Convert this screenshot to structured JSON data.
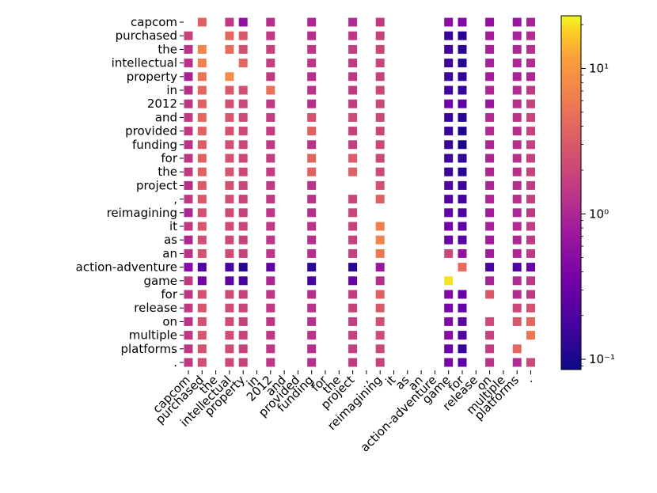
{
  "chart_data": {
    "type": "heatmap",
    "title": "",
    "xlabel": "",
    "ylabel": "",
    "tokens": [
      "capcom",
      "purchased",
      "the",
      "intellectual",
      "property",
      "in",
      "2012",
      "and",
      "provided",
      "funding",
      "for",
      "the",
      "project",
      ",",
      "reimagining",
      "it",
      "as",
      "an",
      "action-adventure",
      "game",
      "for",
      "release",
      "on",
      "multiple",
      "platforms",
      "."
    ],
    "colorbar": {
      "scale": "log",
      "colormap": "plasma",
      "range": [
        0.085,
        23
      ],
      "tick_labels": [
        "10⁻¹",
        "10⁰",
        "10¹"
      ],
      "tick_values": [
        0.1,
        1,
        10
      ]
    },
    "cells": [
      [
        0,
        1,
        3.5
      ],
      [
        0,
        3,
        1.5
      ],
      [
        0,
        4,
        0.6
      ],
      [
        0,
        6,
        1.2
      ],
      [
        0,
        9,
        1.0
      ],
      [
        0,
        12,
        1.1
      ],
      [
        0,
        14,
        1.5
      ],
      [
        0,
        19,
        0.55
      ],
      [
        0,
        20,
        0.45
      ],
      [
        0,
        22,
        0.6
      ],
      [
        0,
        24,
        0.7
      ],
      [
        0,
        25,
        0.9
      ],
      [
        1,
        0,
        1.8
      ],
      [
        1,
        3,
        4.0
      ],
      [
        1,
        4,
        3.0
      ],
      [
        1,
        6,
        1.5
      ],
      [
        1,
        9,
        1.2
      ],
      [
        1,
        12,
        1.4
      ],
      [
        1,
        14,
        1.8
      ],
      [
        1,
        19,
        0.15
      ],
      [
        1,
        20,
        0.12
      ],
      [
        1,
        22,
        0.8
      ],
      [
        1,
        24,
        0.9
      ],
      [
        1,
        25,
        1.1
      ],
      [
        2,
        0,
        1.3
      ],
      [
        2,
        1,
        7.0
      ],
      [
        2,
        3,
        4.5
      ],
      [
        2,
        4,
        2.5
      ],
      [
        2,
        6,
        1.8
      ],
      [
        2,
        9,
        1.4
      ],
      [
        2,
        12,
        1.6
      ],
      [
        2,
        14,
        2.0
      ],
      [
        2,
        19,
        0.17
      ],
      [
        2,
        20,
        0.13
      ],
      [
        2,
        22,
        0.9
      ],
      [
        2,
        24,
        1.0
      ],
      [
        2,
        25,
        1.2
      ],
      [
        3,
        0,
        1.3
      ],
      [
        3,
        1,
        6.5
      ],
      [
        3,
        4,
        4.0
      ],
      [
        3,
        6,
        1.7
      ],
      [
        3,
        9,
        1.4
      ],
      [
        3,
        12,
        1.5
      ],
      [
        3,
        14,
        1.9
      ],
      [
        3,
        19,
        0.16
      ],
      [
        3,
        20,
        0.12
      ],
      [
        3,
        22,
        0.9
      ],
      [
        3,
        24,
        1.0
      ],
      [
        3,
        25,
        1.1
      ],
      [
        4,
        0,
        0.9
      ],
      [
        4,
        1,
        5.0
      ],
      [
        4,
        3,
        8.0
      ],
      [
        4,
        6,
        1.5
      ],
      [
        4,
        9,
        1.2
      ],
      [
        4,
        12,
        1.4
      ],
      [
        4,
        14,
        1.8
      ],
      [
        4,
        19,
        0.15
      ],
      [
        4,
        20,
        0.13
      ],
      [
        4,
        22,
        0.8
      ],
      [
        4,
        24,
        0.9
      ],
      [
        4,
        25,
        1.0
      ],
      [
        5,
        0,
        1.2
      ],
      [
        5,
        1,
        4.0
      ],
      [
        5,
        3,
        3.0
      ],
      [
        5,
        4,
        2.5
      ],
      [
        5,
        6,
        5.0
      ],
      [
        5,
        9,
        1.3
      ],
      [
        5,
        12,
        1.5
      ],
      [
        5,
        14,
        2.0
      ],
      [
        5,
        19,
        0.17
      ],
      [
        5,
        20,
        0.14
      ],
      [
        5,
        22,
        1.0
      ],
      [
        5,
        24,
        1.1
      ],
      [
        5,
        25,
        1.5
      ],
      [
        6,
        0,
        1.4
      ],
      [
        6,
        1,
        3.5
      ],
      [
        6,
        3,
        2.5
      ],
      [
        6,
        4,
        2.0
      ],
      [
        6,
        6,
        1.5
      ],
      [
        6,
        9,
        1.2
      ],
      [
        6,
        12,
        1.6
      ],
      [
        6,
        14,
        2.0
      ],
      [
        6,
        19,
        0.35
      ],
      [
        6,
        20,
        0.25
      ],
      [
        6,
        22,
        0.7
      ],
      [
        6,
        24,
        1.2
      ],
      [
        6,
        25,
        1.8
      ],
      [
        7,
        0,
        1.5
      ],
      [
        7,
        1,
        4.0
      ],
      [
        7,
        3,
        2.8
      ],
      [
        7,
        4,
        2.2
      ],
      [
        7,
        6,
        1.6
      ],
      [
        7,
        9,
        2.5
      ],
      [
        7,
        12,
        2.2
      ],
      [
        7,
        14,
        2.0
      ],
      [
        7,
        19,
        0.15
      ],
      [
        7,
        20,
        0.12
      ],
      [
        7,
        22,
        1.1
      ],
      [
        7,
        24,
        1.3
      ],
      [
        7,
        25,
        1.9
      ],
      [
        8,
        0,
        1.5
      ],
      [
        8,
        1,
        3.8
      ],
      [
        8,
        3,
        2.6
      ],
      [
        8,
        4,
        2.1
      ],
      [
        8,
        6,
        1.6
      ],
      [
        8,
        9,
        3.5
      ],
      [
        8,
        12,
        1.8
      ],
      [
        8,
        14,
        2.0
      ],
      [
        8,
        19,
        0.15
      ],
      [
        8,
        20,
        0.11
      ],
      [
        8,
        22,
        1.1
      ],
      [
        8,
        24,
        1.2
      ],
      [
        8,
        25,
        1.8
      ],
      [
        9,
        0,
        1.3
      ],
      [
        9,
        1,
        3.2
      ],
      [
        9,
        3,
        2.4
      ],
      [
        9,
        4,
        2.0
      ],
      [
        9,
        6,
        1.5
      ],
      [
        9,
        9,
        1.3
      ],
      [
        9,
        12,
        1.6
      ],
      [
        9,
        14,
        2.0
      ],
      [
        9,
        19,
        0.15
      ],
      [
        9,
        20,
        0.1
      ],
      [
        9,
        22,
        1.0
      ],
      [
        9,
        24,
        1.2
      ],
      [
        9,
        25,
        1.7
      ],
      [
        10,
        0,
        1.4
      ],
      [
        10,
        1,
        3.5
      ],
      [
        10,
        3,
        2.6
      ],
      [
        10,
        4,
        2.1
      ],
      [
        10,
        6,
        1.6
      ],
      [
        10,
        9,
        3.8
      ],
      [
        10,
        12,
        3.2
      ],
      [
        10,
        14,
        2.0
      ],
      [
        10,
        19,
        0.16
      ],
      [
        10,
        20,
        0.13
      ],
      [
        10,
        22,
        1.0
      ],
      [
        10,
        24,
        1.2
      ],
      [
        10,
        25,
        1.7
      ],
      [
        11,
        0,
        1.5
      ],
      [
        11,
        1,
        3.6
      ],
      [
        11,
        3,
        2.7
      ],
      [
        11,
        4,
        2.1
      ],
      [
        11,
        6,
        1.6
      ],
      [
        11,
        9,
        3.6
      ],
      [
        11,
        12,
        3.5
      ],
      [
        11,
        14,
        2.2
      ],
      [
        11,
        19,
        0.15
      ],
      [
        11,
        20,
        0.12
      ],
      [
        11,
        22,
        1.0
      ],
      [
        11,
        24,
        1.2
      ],
      [
        11,
        25,
        1.8
      ],
      [
        12,
        0,
        1.2
      ],
      [
        12,
        1,
        3.2
      ],
      [
        12,
        3,
        2.5
      ],
      [
        12,
        4,
        2.0
      ],
      [
        12,
        6,
        1.5
      ],
      [
        12,
        9,
        1.3
      ],
      [
        12,
        14,
        2.6
      ],
      [
        12,
        19,
        0.2
      ],
      [
        12,
        20,
        0.15
      ],
      [
        12,
        22,
        1.0
      ],
      [
        12,
        24,
        1.2
      ],
      [
        12,
        25,
        1.6
      ],
      [
        13,
        0,
        1.5
      ],
      [
        13,
        1,
        3.0
      ],
      [
        13,
        3,
        2.4
      ],
      [
        13,
        4,
        1.9
      ],
      [
        13,
        6,
        1.5
      ],
      [
        13,
        9,
        1.3
      ],
      [
        13,
        12,
        2.0
      ],
      [
        13,
        14,
        3.5
      ],
      [
        13,
        19,
        0.22
      ],
      [
        13,
        20,
        0.17
      ],
      [
        13,
        22,
        1.0
      ],
      [
        13,
        24,
        1.2
      ],
      [
        13,
        25,
        1.7
      ],
      [
        14,
        0,
        1.0
      ],
      [
        14,
        1,
        2.5
      ],
      [
        14,
        3,
        2.2
      ],
      [
        14,
        4,
        1.8
      ],
      [
        14,
        6,
        1.4
      ],
      [
        14,
        9,
        1.2
      ],
      [
        14,
        12,
        2.0
      ],
      [
        14,
        19,
        0.28
      ],
      [
        14,
        20,
        0.2
      ],
      [
        14,
        22,
        0.8
      ],
      [
        14,
        24,
        1.0
      ],
      [
        14,
        25,
        1.5
      ],
      [
        15,
        0,
        1.5
      ],
      [
        15,
        1,
        2.8
      ],
      [
        15,
        3,
        2.3
      ],
      [
        15,
        4,
        1.9
      ],
      [
        15,
        6,
        1.5
      ],
      [
        15,
        9,
        1.3
      ],
      [
        15,
        12,
        1.8
      ],
      [
        15,
        14,
        6.5
      ],
      [
        15,
        19,
        0.35
      ],
      [
        15,
        20,
        0.25
      ],
      [
        15,
        22,
        0.9
      ],
      [
        15,
        24,
        1.1
      ],
      [
        15,
        25,
        1.6
      ],
      [
        16,
        0,
        1.0
      ],
      [
        16,
        1,
        2.4
      ],
      [
        16,
        3,
        2.1
      ],
      [
        16,
        4,
        1.8
      ],
      [
        16,
        6,
        1.4
      ],
      [
        16,
        9,
        1.2
      ],
      [
        16,
        12,
        1.7
      ],
      [
        16,
        14,
        6.8
      ],
      [
        16,
        19,
        0.3
      ],
      [
        16,
        20,
        0.22
      ],
      [
        16,
        22,
        0.8
      ],
      [
        16,
        24,
        1.0
      ],
      [
        16,
        25,
        1.5
      ],
      [
        17,
        0,
        1.3
      ],
      [
        17,
        1,
        2.6
      ],
      [
        17,
        3,
        2.2
      ],
      [
        17,
        4,
        1.8
      ],
      [
        17,
        6,
        1.4
      ],
      [
        17,
        9,
        1.2
      ],
      [
        17,
        12,
        1.7
      ],
      [
        17,
        14,
        5.5
      ],
      [
        17,
        19,
        2.0
      ],
      [
        17,
        20,
        0.6
      ],
      [
        17,
        22,
        0.8
      ],
      [
        17,
        24,
        1.0
      ],
      [
        17,
        25,
        1.5
      ],
      [
        18,
        0,
        0.5
      ],
      [
        18,
        1,
        0.2
      ],
      [
        18,
        3,
        0.18
      ],
      [
        18,
        4,
        0.12
      ],
      [
        18,
        6,
        0.25
      ],
      [
        18,
        9,
        0.13
      ],
      [
        18,
        12,
        0.12
      ],
      [
        18,
        14,
        0.7
      ],
      [
        18,
        20,
        4.5
      ],
      [
        18,
        22,
        0.18
      ],
      [
        18,
        24,
        0.2
      ],
      [
        18,
        25,
        0.3
      ],
      [
        19,
        0,
        1.5
      ],
      [
        19,
        1,
        0.35
      ],
      [
        19,
        3,
        0.25
      ],
      [
        19,
        4,
        0.18
      ],
      [
        19,
        6,
        1.0
      ],
      [
        19,
        9,
        0.18
      ],
      [
        19,
        12,
        0.3
      ],
      [
        19,
        14,
        1.2
      ],
      [
        19,
        19,
        20
      ],
      [
        19,
        22,
        0.9
      ],
      [
        19,
        24,
        1.1
      ],
      [
        19,
        25,
        1.4
      ],
      [
        20,
        0,
        1.4
      ],
      [
        20,
        1,
        2.6
      ],
      [
        20,
        3,
        2.2
      ],
      [
        20,
        4,
        1.8
      ],
      [
        20,
        6,
        1.4
      ],
      [
        20,
        9,
        1.2
      ],
      [
        20,
        12,
        1.6
      ],
      [
        20,
        14,
        3.5
      ],
      [
        20,
        19,
        0.45
      ],
      [
        20,
        20,
        0.3
      ],
      [
        20,
        22,
        3.0
      ],
      [
        20,
        24,
        1.1
      ],
      [
        20,
        25,
        1.5
      ],
      [
        21,
        0,
        1.5
      ],
      [
        21,
        1,
        2.8
      ],
      [
        21,
        3,
        2.3
      ],
      [
        21,
        4,
        1.9
      ],
      [
        21,
        6,
        1.5
      ],
      [
        21,
        9,
        1.3
      ],
      [
        21,
        12,
        1.8
      ],
      [
        21,
        14,
        3.0
      ],
      [
        21,
        19,
        0.4
      ],
      [
        21,
        20,
        0.28
      ],
      [
        21,
        24,
        2.0
      ],
      [
        21,
        25,
        2.6
      ],
      [
        22,
        0,
        1.3
      ],
      [
        22,
        1,
        2.6
      ],
      [
        22,
        3,
        2.2
      ],
      [
        22,
        4,
        1.8
      ],
      [
        22,
        6,
        1.4
      ],
      [
        22,
        9,
        1.2
      ],
      [
        22,
        12,
        1.6
      ],
      [
        22,
        14,
        2.4
      ],
      [
        22,
        19,
        0.45
      ],
      [
        22,
        20,
        0.25
      ],
      [
        22,
        22,
        2.2
      ],
      [
        22,
        24,
        2.8
      ],
      [
        22,
        25,
        4.0
      ],
      [
        23,
        0,
        1.4
      ],
      [
        23,
        1,
        2.7
      ],
      [
        23,
        3,
        2.3
      ],
      [
        23,
        4,
        1.9
      ],
      [
        23,
        6,
        1.5
      ],
      [
        23,
        9,
        1.3
      ],
      [
        23,
        12,
        1.7
      ],
      [
        23,
        14,
        2.2
      ],
      [
        23,
        19,
        0.5
      ],
      [
        23,
        20,
        0.2
      ],
      [
        23,
        22,
        1.8
      ],
      [
        23,
        25,
        5.5
      ],
      [
        24,
        0,
        1.4
      ],
      [
        24,
        1,
        2.6
      ],
      [
        24,
        3,
        2.2
      ],
      [
        24,
        4,
        1.8
      ],
      [
        24,
        6,
        1.4
      ],
      [
        24,
        9,
        1.2
      ],
      [
        24,
        12,
        1.6
      ],
      [
        24,
        14,
        2.0
      ],
      [
        24,
        19,
        0.3
      ],
      [
        24,
        20,
        0.15
      ],
      [
        24,
        22,
        1.6
      ],
      [
        24,
        24,
        4.0
      ],
      [
        25,
        0,
        1.5
      ],
      [
        25,
        1,
        2.4
      ],
      [
        25,
        3,
        2.1
      ],
      [
        25,
        4,
        1.8
      ],
      [
        25,
        6,
        1.4
      ],
      [
        25,
        9,
        1.2
      ],
      [
        25,
        12,
        1.5
      ],
      [
        25,
        14,
        1.8
      ],
      [
        25,
        19,
        0.4
      ],
      [
        25,
        20,
        0.25
      ],
      [
        25,
        22,
        1.3
      ],
      [
        25,
        24,
        1.1
      ],
      [
        25,
        25,
        2.0
      ]
    ]
  }
}
